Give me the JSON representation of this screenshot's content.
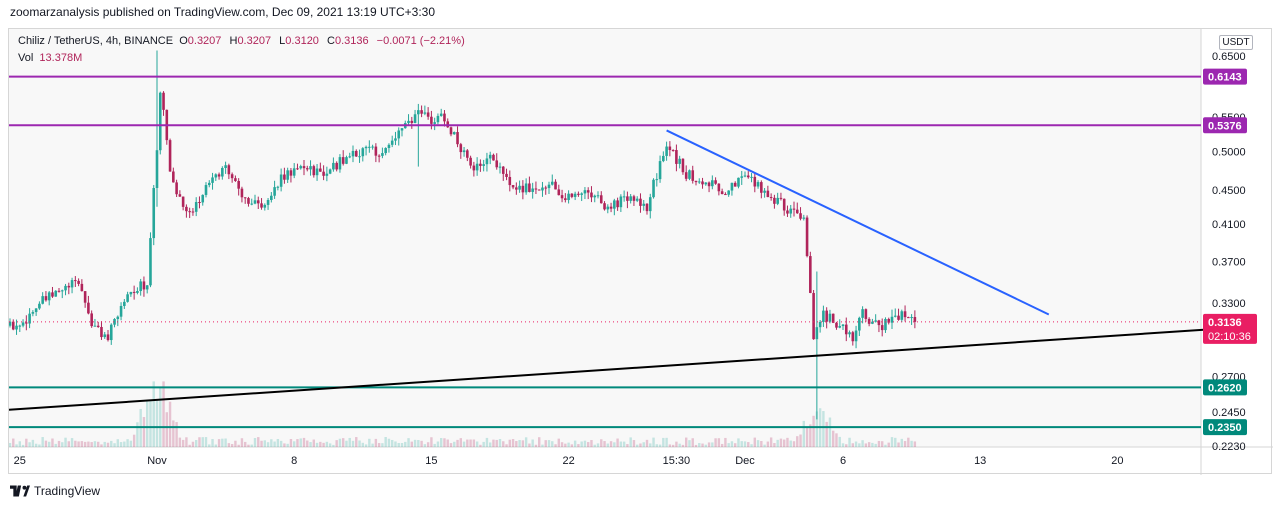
{
  "header": {
    "publish_line": "zoomarzanalysis published on TradingView.com, Dec 09, 2021 13:19 UTC+3:30"
  },
  "legend": {
    "symbol": "Chiliz / TetherUS, 4h, BINANCE",
    "o_key": "O",
    "o_val": "0.3207",
    "h_key": "H",
    "h_val": "0.3207",
    "l_key": "L",
    "l_val": "0.3120",
    "c_key": "C",
    "c_val": "0.3136",
    "change": "−0.0071 (−2.21%)",
    "vol_key": "Vol",
    "vol_val": "13.378M"
  },
  "unit_badge": "USDT",
  "brand": {
    "name": "TradingView"
  },
  "colors": {
    "up": "#26a69a",
    "down": "#b0245a",
    "resistance": "#9c27b0",
    "support": "#00897b",
    "trend_down": "#2962ff",
    "trend_up": "#000000",
    "last": "#e91e63"
  },
  "chart_data": {
    "type": "candlestick",
    "scale": "log",
    "ylim": [
      0.2225,
      0.7
    ],
    "y_ticks": [
      "0.6500",
      "0.5500",
      "0.5000",
      "0.4500",
      "0.4100",
      "0.3700",
      "0.3300",
      "0.2700",
      "0.2450",
      "0.2230"
    ],
    "x_ticks": [
      "25",
      "Nov",
      "8",
      "15",
      "22",
      "15:30",
      "Dec",
      "6",
      "13",
      "20"
    ],
    "x_tick_days": [
      -7,
      0,
      7,
      14,
      21,
      26.5,
      30,
      35,
      42,
      49
    ],
    "horizontal_levels": [
      {
        "value": 0.6143,
        "label": "0.6143",
        "kind": "resistance"
      },
      {
        "value": 0.5376,
        "label": "0.5376",
        "kind": "resistance"
      },
      {
        "value": 0.262,
        "label": "0.2620",
        "kind": "support"
      },
      {
        "value": 0.235,
        "label": "0.2350",
        "kind": "support"
      }
    ],
    "trendlines": [
      {
        "name": "descending",
        "from": [
          26,
          0.53
        ],
        "to": [
          45.5,
          0.32
        ]
      },
      {
        "name": "ascending",
        "from": [
          -8,
          0.246
        ],
        "to": [
          53.5,
          0.307
        ]
      }
    ],
    "last_price": {
      "value": 0.3136,
      "label": "0.3136",
      "countdown": "02:10:36"
    },
    "close_path": [
      [
        -8,
        0.31
      ],
      [
        -7,
        0.31
      ],
      [
        -6,
        0.33
      ],
      [
        -5,
        0.34
      ],
      [
        -4,
        0.35
      ],
      [
        -3.3,
        0.31
      ],
      [
        -2.5,
        0.3
      ],
      [
        -1.5,
        0.34
      ],
      [
        -0.5,
        0.348
      ],
      [
        0,
        0.5
      ],
      [
        0.2,
        0.6
      ],
      [
        0.7,
        0.46
      ],
      [
        1.5,
        0.42
      ],
      [
        2.5,
        0.45
      ],
      [
        3.5,
        0.48
      ],
      [
        4.5,
        0.44
      ],
      [
        5.5,
        0.43
      ],
      [
        6.5,
        0.47
      ],
      [
        7.5,
        0.48
      ],
      [
        8.5,
        0.47
      ],
      [
        9.5,
        0.49
      ],
      [
        10.5,
        0.5
      ],
      [
        11.5,
        0.5
      ],
      [
        12.5,
        0.53
      ],
      [
        13.5,
        0.56
      ],
      [
        14,
        0.54
      ],
      [
        14.5,
        0.56
      ],
      [
        15,
        0.53
      ],
      [
        16,
        0.48
      ],
      [
        17,
        0.49
      ],
      [
        18,
        0.46
      ],
      [
        19,
        0.45
      ],
      [
        20,
        0.46
      ],
      [
        21,
        0.44
      ],
      [
        22,
        0.45
      ],
      [
        23,
        0.43
      ],
      [
        24,
        0.44
      ],
      [
        25,
        0.43
      ],
      [
        26,
        0.51
      ],
      [
        27,
        0.47
      ],
      [
        28,
        0.46
      ],
      [
        29,
        0.45
      ],
      [
        30,
        0.47
      ],
      [
        31,
        0.45
      ],
      [
        32,
        0.43
      ],
      [
        33,
        0.42
      ],
      [
        33.5,
        0.3
      ],
      [
        34,
        0.32
      ],
      [
        35,
        0.31
      ],
      [
        35.5,
        0.3
      ],
      [
        36,
        0.32
      ],
      [
        37,
        0.31
      ],
      [
        38,
        0.32
      ],
      [
        38.7,
        0.3136
      ]
    ],
    "wick_extremes": [
      {
        "day": 0,
        "high": 0.66,
        "low": 0.43
      },
      {
        "day": 13.3,
        "high": 0.57,
        "low": 0.48
      },
      {
        "day": 33.7,
        "high": 0.36,
        "low": 0.24
      }
    ],
    "volume_spikes": [
      {
        "day": 0,
        "size": 1.0
      },
      {
        "day": 33.7,
        "size": 0.55
      }
    ]
  }
}
